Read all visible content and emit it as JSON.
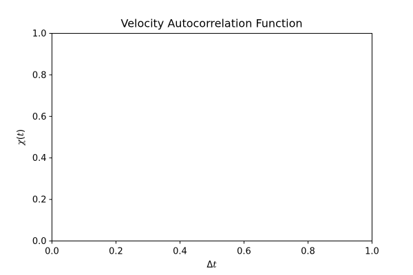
{
  "chart_data": {
    "type": "line",
    "title": "Velocity Autocorrelation Function",
    "xlabel": "Δt",
    "ylabel": "χ(t)",
    "xlim": [
      0.0,
      1.0
    ],
    "ylim": [
      0.0,
      1.0
    ],
    "xticks": [
      "0.0",
      "0.2",
      "0.4",
      "0.6",
      "0.8",
      "1.0"
    ],
    "yticks": [
      "0.0",
      "0.2",
      "0.4",
      "0.6",
      "0.8",
      "1.0"
    ],
    "grid": false,
    "series": []
  }
}
